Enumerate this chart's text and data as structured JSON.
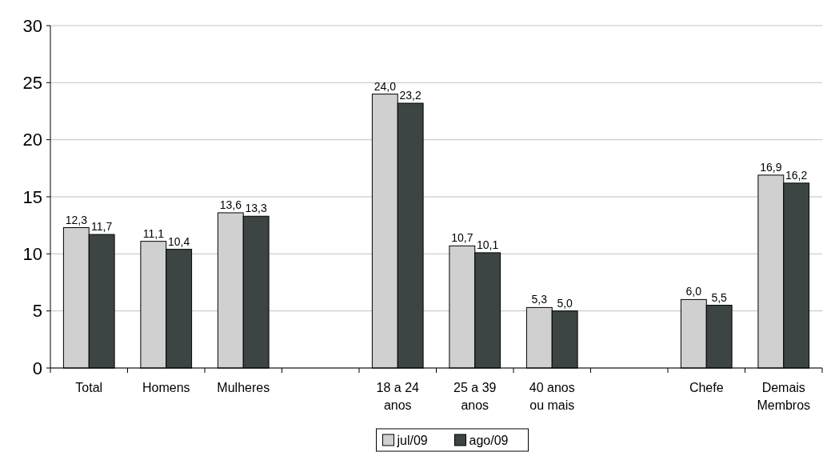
{
  "chart_data": {
    "type": "bar",
    "categories": [
      "Total",
      "Homens",
      "Mulheres",
      null,
      "18 a 24 anos",
      "25 a 39 anos",
      "40 anos ou mais",
      null,
      "Chefe",
      "Demais Membros"
    ],
    "series": [
      {
        "name": "jul/09",
        "color": "#d0d0d0",
        "values": [
          12.3,
          11.1,
          13.6,
          null,
          24.0,
          10.7,
          5.3,
          null,
          6.0,
          16.9
        ],
        "value_labels": [
          "12,3",
          "11,1",
          "13,6",
          null,
          "24,0",
          "10,7",
          "5,3",
          null,
          "6,0",
          "16,9"
        ]
      },
      {
        "name": "ago/09",
        "color": "#3c4544",
        "values": [
          11.7,
          10.4,
          13.3,
          null,
          23.2,
          10.1,
          5.0,
          null,
          5.5,
          16.2
        ],
        "value_labels": [
          "11,7",
          "10,4",
          "13,3",
          null,
          "23,2",
          "10,1",
          "5,0",
          null,
          "5,5",
          "16,2"
        ]
      }
    ],
    "ylim": [
      0,
      30
    ],
    "yticks": [
      0,
      5,
      10,
      15,
      20,
      25,
      30
    ],
    "grid": "y",
    "legend": "bottom"
  }
}
